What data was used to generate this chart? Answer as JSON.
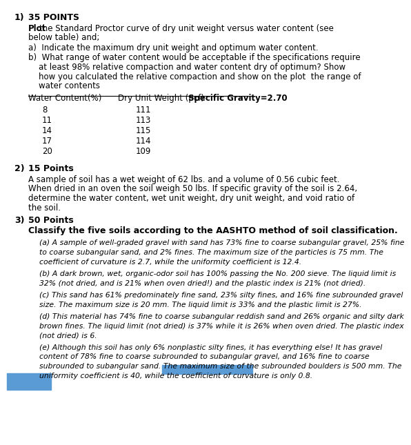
{
  "bg_color": "#ffffff",
  "text_color": "#000000",
  "blue_rect_color": "#5b9bd5",
  "table_rows": [
    [
      8,
      111
    ],
    [
      11,
      113
    ],
    [
      14,
      115
    ],
    [
      17,
      114
    ],
    [
      20,
      109
    ]
  ],
  "item_texts": [
    "(a) A sample of well-graded gravel with sand has 73% fine to coarse subangular gravel, 25% fine\nto coarse subangular sand, and 2% fines. The maximum size of the particles is 75 mm. The\ncoefficient of curvature is 2.7, while the uniformity coefficient is 12.4.",
    "(b) A dark brown, wet, organic-odor soil has 100% passing the No. 200 sieve. The liquid limit is\n32% (not dried, and is 21% when oven dried!) and the plastic index is 21% (not dried).",
    "(c) This sand has 61% predominately fine sand, 23% silty fines, and 16% fine subrounded gravel\nsize. The maximum size is 20 mm. The liquid limit is 33% and the plastic limit is 27%.",
    "(d) This material has 74% fine to coarse subangular reddish sand and 26% organic and silty dark\nbrown fines. The liquid limit (not dried) is 37% while it is 26% when oven dried. The plastic index\n(not dried) is 6.",
    "(e) Although this soil has only 6% nonplastic silty fines, it has everything else! It has gravel\ncontent of 78% fine to coarse subrounded to subangular gravel, and 16% fine to coarse\nsubrounded to subangular sand. The maximum size of the subrounded boulders is 500 mm. The\nuniformity coefficient is 40, while the coefficient of curvature is only 0.8."
  ]
}
